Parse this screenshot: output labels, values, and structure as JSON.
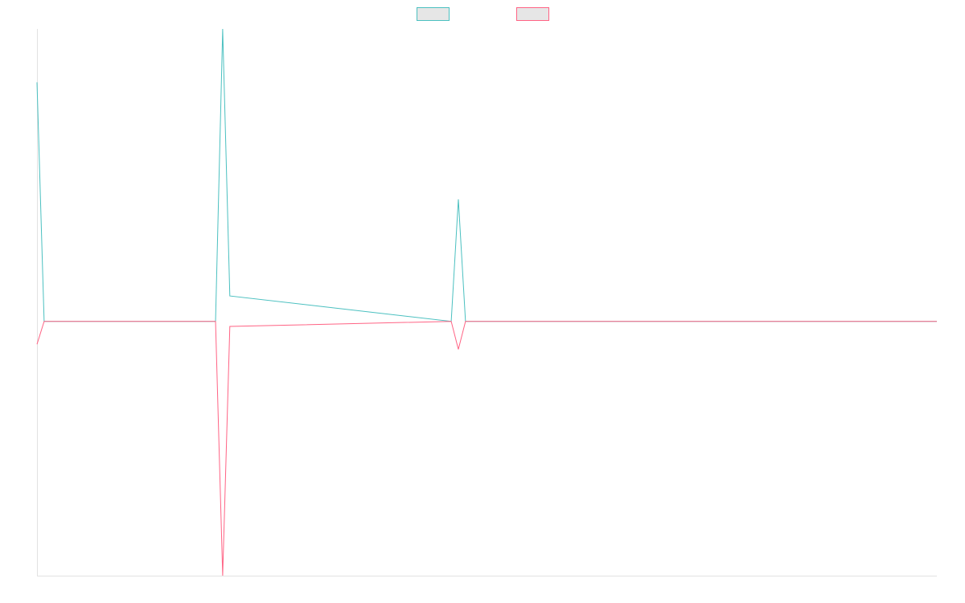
{
  "chart_data": {
    "type": "line",
    "title": "",
    "xlabel": "",
    "ylabel": "",
    "grid": false,
    "legend": {
      "position": "top-center"
    },
    "x": [
      0,
      1,
      25,
      26,
      27,
      58,
      59,
      60,
      126
    ],
    "xlim": [
      0,
      126
    ],
    "ylim": [
      -100,
      115
    ],
    "series": [
      {
        "color": "#4bc0c0",
        "swatch_fill": "#e6e6e6",
        "values": [
          94,
          0,
          0,
          115,
          10,
          0,
          48,
          0,
          0
        ]
      },
      {
        "color": "#ff6384",
        "swatch_fill": "#e6e6e6",
        "values": [
          -9,
          0,
          0,
          -100,
          -2,
          0,
          -11,
          0,
          0
        ]
      }
    ]
  }
}
